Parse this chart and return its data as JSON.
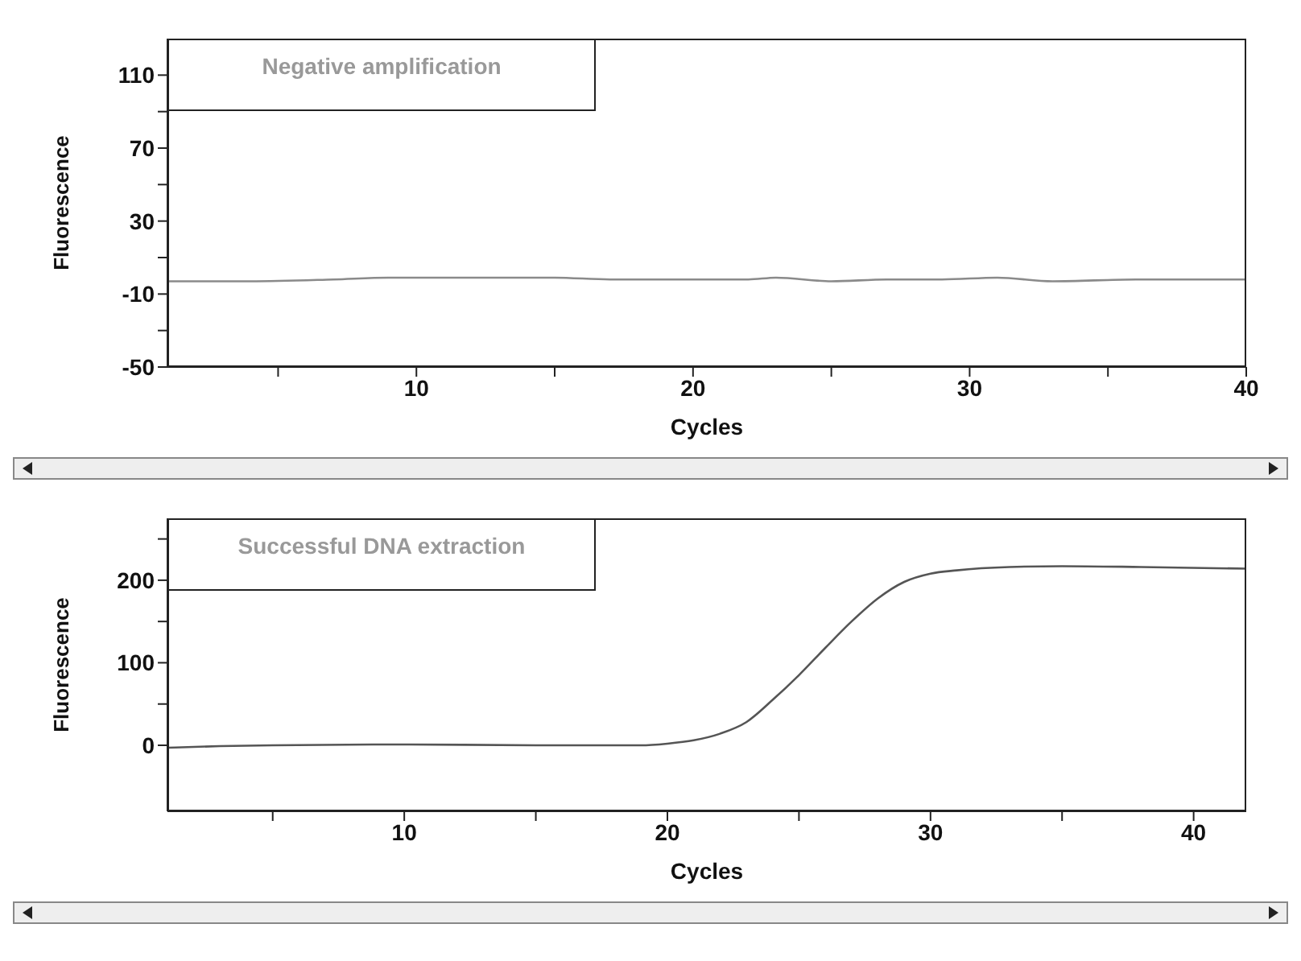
{
  "chart_data": [
    {
      "type": "line",
      "annotations": [
        "Negative amplification"
      ],
      "xlabel": "Cycles",
      "ylabel": "Fluorescence",
      "xlim": [
        1,
        40
      ],
      "ylim": [
        -50,
        130
      ],
      "xticks": [
        {
          "value": 5,
          "label": null
        },
        10,
        {
          "value": 15,
          "label": null
        },
        20,
        {
          "value": 25,
          "label": null
        },
        30,
        {
          "value": 35,
          "label": null
        },
        40
      ],
      "yticks": [
        -50,
        {
          "value": -30,
          "label": null
        },
        -10,
        {
          "value": 10,
          "label": null
        },
        30,
        {
          "value": 50,
          "label": null
        },
        70,
        {
          "value": 90,
          "label": null
        },
        110
      ],
      "grid": false,
      "legend": false,
      "marker": "none",
      "line_style": "solid",
      "series": [
        {
          "color": "#8a8a8a",
          "x": [
            1,
            4,
            7,
            9,
            12,
            15,
            17,
            19,
            22,
            23,
            25,
            27,
            29,
            31,
            33,
            36,
            40
          ],
          "values": [
            -3,
            -3,
            -2,
            -1,
            -1,
            -1,
            -2,
            -2,
            -2,
            -1,
            -3,
            -2,
            -2,
            -1,
            -3,
            -2,
            -2
          ]
        }
      ]
    },
    {
      "type": "line",
      "annotations": [
        "Successful DNA extraction"
      ],
      "xlabel": "Cycles",
      "ylabel": "Fluorescence",
      "xlim": [
        1,
        42
      ],
      "ylim": [
        -80,
        275
      ],
      "xticks": [
        {
          "value": 5,
          "label": null
        },
        10,
        {
          "value": 15,
          "label": null
        },
        20,
        {
          "value": 25,
          "label": null
        },
        30,
        {
          "value": 35,
          "label": null
        },
        40
      ],
      "yticks": [
        0,
        {
          "value": 50,
          "label": null
        },
        100,
        {
          "value": 150,
          "label": null
        },
        200,
        {
          "value": 250,
          "label": null
        }
      ],
      "grid": false,
      "legend": false,
      "marker": "none",
      "line_style": "solid",
      "series": [
        {
          "color": "#555555",
          "x": [
            1,
            3,
            5,
            10,
            15,
            19,
            20,
            21,
            22,
            23,
            24,
            25,
            26,
            27,
            28,
            29,
            30,
            31,
            33,
            35,
            38,
            42
          ],
          "values": [
            -3,
            -1,
            0,
            1,
            0,
            0,
            2,
            6,
            14,
            28,
            55,
            85,
            118,
            150,
            178,
            198,
            208,
            212,
            216,
            217,
            216,
            214
          ]
        }
      ]
    }
  ]
}
